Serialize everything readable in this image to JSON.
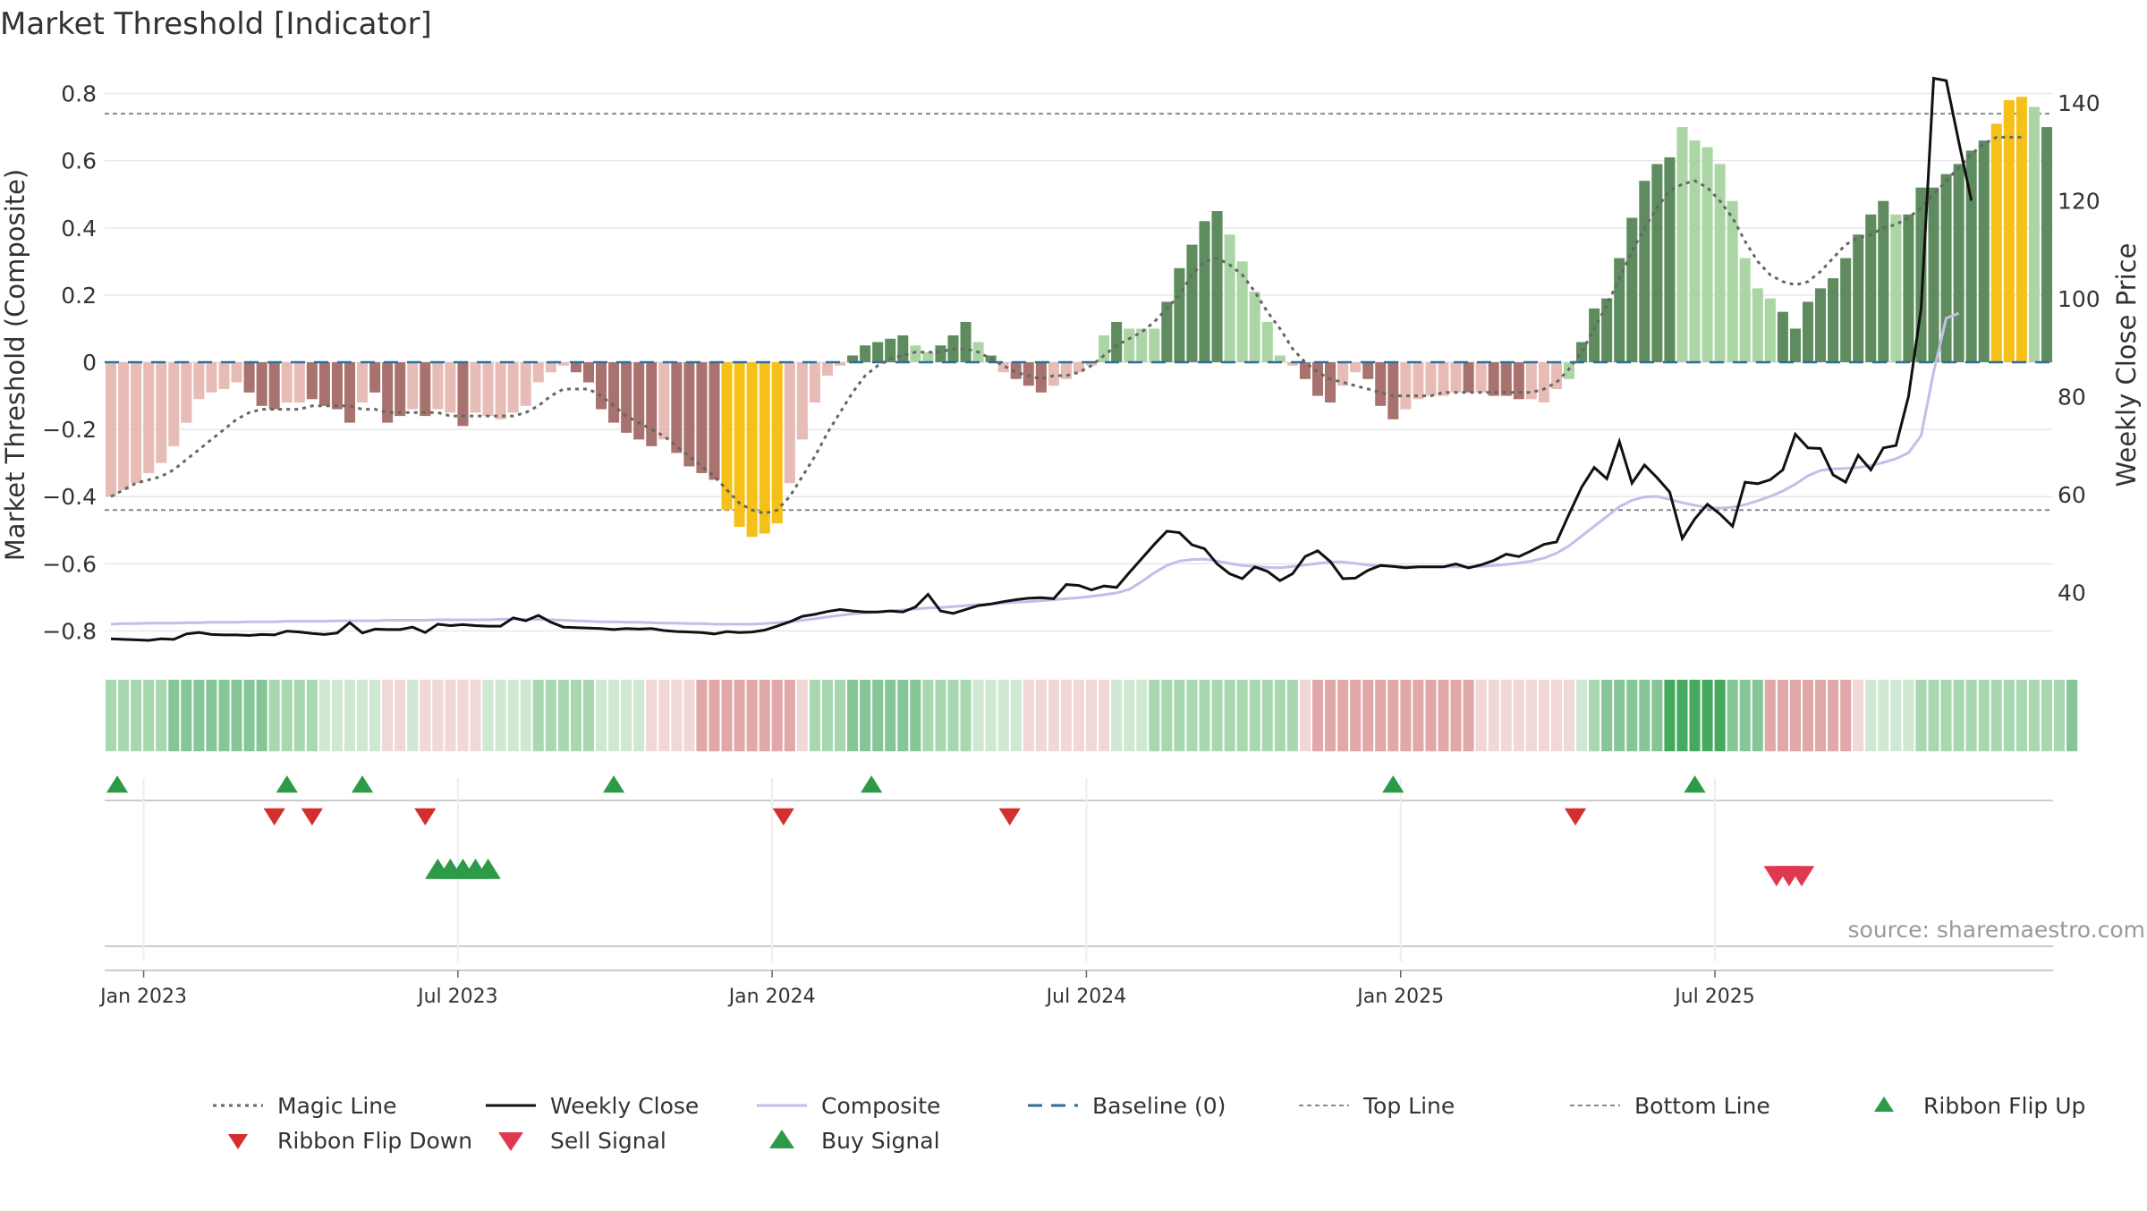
{
  "title": "Market Threshold [Indicator]",
  "source": "source: sharemaestro.com",
  "colors": {
    "bull_dark": "#5e8c5e",
    "bull_light": "#acd5a5",
    "bear_dark": "#a8736e",
    "bear_light": "#e8bcb6",
    "extreme": "#f5c018",
    "magic": "#666666",
    "close": "#111111",
    "composite": "#c4bde9",
    "baseline": "#2f6d99",
    "threshold": "#888888",
    "buy": "#2c9a46",
    "sell": "#d32f2f",
    "sell_signal": "#e0394f"
  },
  "chart_data": {
    "type": "bar",
    "title": "Market Threshold [Indicator]",
    "ylabel": "Market Threshold (Composite)",
    "y2label": "Weekly Close Price",
    "ylim": [
      -0.86,
      0.86
    ],
    "y2lim": [
      28,
      146
    ],
    "yticks": [
      "0.8",
      "0.6",
      "0.4",
      "0.2",
      "0",
      "−0.2",
      "−0.4",
      "−0.6",
      "−0.8"
    ],
    "ytick_values": [
      0.8,
      0.6,
      0.4,
      0.2,
      0,
      -0.2,
      -0.4,
      -0.6,
      -0.8
    ],
    "y2ticks": [
      "140",
      "120",
      "100",
      "80",
      "60",
      "40"
    ],
    "y2tick_values": [
      140,
      120,
      100,
      80,
      60,
      40
    ],
    "x_ticks": [
      "Jan 2023",
      "Jul 2023",
      "Jan 2024",
      "Jul 2024",
      "Jan 2025",
      "Jul 2025"
    ],
    "x_tick_weeks": [
      3.1,
      28.1,
      53.1,
      78.1,
      103.1,
      128.1
    ],
    "top_line": 0.74,
    "bottom_line": -0.44,
    "baseline": 0,
    "bars": [
      -0.4,
      -0.38,
      -0.36,
      -0.33,
      -0.3,
      -0.25,
      -0.18,
      -0.11,
      -0.09,
      -0.08,
      -0.06,
      -0.09,
      -0.13,
      -0.14,
      -0.12,
      -0.12,
      -0.11,
      -0.13,
      -0.14,
      -0.18,
      -0.12,
      -0.09,
      -0.18,
      -0.16,
      -0.14,
      -0.16,
      -0.14,
      -0.15,
      -0.19,
      -0.15,
      -0.16,
      -0.17,
      -0.15,
      -0.13,
      -0.06,
      -0.03,
      -0.01,
      -0.03,
      -0.06,
      -0.14,
      -0.18,
      -0.21,
      -0.23,
      -0.25,
      -0.23,
      -0.27,
      -0.31,
      -0.33,
      -0.35,
      -0.44,
      -0.49,
      -0.52,
      -0.51,
      -0.48,
      -0.36,
      -0.23,
      -0.12,
      -0.04,
      -0.01,
      0.02,
      0.05,
      0.06,
      0.07,
      0.08,
      0.05,
      0.03,
      0.05,
      0.08,
      0.12,
      0.06,
      0.02,
      -0.03,
      -0.05,
      -0.07,
      -0.09,
      -0.07,
      -0.05,
      -0.03,
      -0.01,
      0.08,
      0.12,
      0.1,
      0.1,
      0.1,
      0.18,
      0.28,
      0.35,
      0.42,
      0.45,
      0.38,
      0.3,
      0.21,
      0.12,
      0.02,
      -0.01,
      -0.05,
      -0.1,
      -0.12,
      -0.07,
      -0.03,
      -0.05,
      -0.13,
      -0.17,
      -0.14,
      -0.11,
      -0.1,
      -0.1,
      -0.09,
      -0.09,
      -0.09,
      -0.1,
      -0.1,
      -0.11,
      -0.11,
      -0.12,
      -0.08,
      -0.05,
      0.06,
      0.16,
      0.19,
      0.31,
      0.43,
      0.54,
      0.59,
      0.61,
      0.7,
      0.66,
      0.64,
      0.59,
      0.48,
      0.31,
      0.22,
      0.19,
      0.15,
      0.1,
      0.18,
      0.22,
      0.25,
      0.31,
      0.38,
      0.44,
      0.48,
      0.44,
      0.44,
      0.52,
      0.52,
      0.56,
      0.59,
      0.63,
      0.66,
      0.71,
      0.78,
      0.79,
      0.76,
      0.7
    ],
    "bar_categories": [
      "BR",
      "BR",
      "BR",
      "BR",
      "BR",
      "BR",
      "BR",
      "BR",
      "BR",
      "BR",
      "BR",
      "BD",
      "BD",
      "BD",
      "BR",
      "BR",
      "BD",
      "BD",
      "BD",
      "BD",
      "BR",
      "BD",
      "BD",
      "BD",
      "BR",
      "BD",
      "BR",
      "BR",
      "BD",
      "BR",
      "BR",
      "BR",
      "BR",
      "BR",
      "BR",
      "BR",
      "BR",
      "BD",
      "BD",
      "BD",
      "BD",
      "BD",
      "BD",
      "BD",
      "BR",
      "BD",
      "BD",
      "BD",
      "BD",
      "X",
      "X",
      "X",
      "X",
      "X",
      "BR",
      "BR",
      "BR",
      "BR",
      "BR",
      "BD",
      "BD",
      "BD",
      "BD",
      "BD",
      "BL",
      "BL",
      "BD",
      "BD",
      "BD",
      "BL",
      "BD",
      "BR",
      "BD",
      "BD",
      "BD",
      "BR",
      "BR",
      "BR",
      "BR",
      "BL",
      "BD",
      "BL",
      "BL",
      "BL",
      "BD",
      "BD",
      "BD",
      "BD",
      "BD",
      "BL",
      "BL",
      "BL",
      "BL",
      "BL",
      "BR",
      "BD",
      "BD",
      "BD",
      "BR",
      "BR",
      "BD",
      "BD",
      "BD",
      "BR",
      "BR",
      "BR",
      "BR",
      "BR",
      "BD",
      "BR",
      "BD",
      "BD",
      "BD",
      "BR",
      "BR",
      "BR",
      "BL",
      "BD",
      "BD",
      "BD",
      "BD",
      "BD",
      "BD",
      "BD",
      "BD",
      "BL",
      "BL",
      "BL",
      "BL",
      "BL",
      "BL",
      "BL",
      "BL",
      "BD",
      "BD",
      "BD",
      "BD",
      "BD",
      "BD",
      "BD",
      "BD",
      "BD",
      "BL",
      "BD",
      "BD",
      "BD",
      "BD",
      "BD",
      "BD",
      "BD",
      "X",
      "X",
      "X",
      "BL"
    ],
    "magic_line": [
      -0.4,
      -0.38,
      -0.36,
      -0.35,
      -0.34,
      -0.32,
      -0.29,
      -0.26,
      -0.23,
      -0.2,
      -0.17,
      -0.15,
      -0.14,
      -0.14,
      -0.14,
      -0.14,
      -0.13,
      -0.13,
      -0.13,
      -0.13,
      -0.14,
      -0.14,
      -0.15,
      -0.15,
      -0.15,
      -0.15,
      -0.15,
      -0.16,
      -0.16,
      -0.16,
      -0.16,
      -0.16,
      -0.16,
      -0.15,
      -0.13,
      -0.1,
      -0.08,
      -0.08,
      -0.08,
      -0.1,
      -0.13,
      -0.16,
      -0.18,
      -0.2,
      -0.22,
      -0.25,
      -0.28,
      -0.31,
      -0.34,
      -0.38,
      -0.42,
      -0.44,
      -0.45,
      -0.44,
      -0.4,
      -0.34,
      -0.28,
      -0.21,
      -0.15,
      -0.09,
      -0.04,
      -0.01,
      0.01,
      0.02,
      0.03,
      0.03,
      0.03,
      0.04,
      0.04,
      0.03,
      0.01,
      -0.01,
      -0.03,
      -0.04,
      -0.05,
      -0.04,
      -0.04,
      -0.03,
      -0.01,
      0.02,
      0.05,
      0.07,
      0.09,
      0.12,
      0.16,
      0.2,
      0.26,
      0.3,
      0.31,
      0.29,
      0.26,
      0.21,
      0.15,
      0.1,
      0.04,
      0.0,
      -0.03,
      -0.05,
      -0.06,
      -0.07,
      -0.08,
      -0.09,
      -0.1,
      -0.1,
      -0.1,
      -0.1,
      -0.09,
      -0.09,
      -0.09,
      -0.09,
      -0.09,
      -0.09,
      -0.09,
      -0.09,
      -0.08,
      -0.06,
      -0.02,
      0.03,
      0.1,
      0.17,
      0.25,
      0.33,
      0.4,
      0.46,
      0.51,
      0.53,
      0.54,
      0.52,
      0.48,
      0.43,
      0.36,
      0.3,
      0.26,
      0.24,
      0.23,
      0.24,
      0.27,
      0.31,
      0.35,
      0.37,
      0.38,
      0.4,
      0.41,
      0.43,
      0.46,
      0.5,
      0.54,
      0.58,
      0.62,
      0.65,
      0.67,
      0.67,
      0.67
    ],
    "weekly_close": [
      30.5,
      30.4,
      30.3,
      30.2,
      30.5,
      30.4,
      31.5,
      31.8,
      31.4,
      31.3,
      31.3,
      31.2,
      31.4,
      31.3,
      32.1,
      31.9,
      31.6,
      31.4,
      31.7,
      33.8,
      31.7,
      32.5,
      32.4,
      32.4,
      32.9,
      31.8,
      33.5,
      33.2,
      33.4,
      33.2,
      33.1,
      33.1,
      34.8,
      34.2,
      35.3,
      33.9,
      32.9,
      32.8,
      32.7,
      32.6,
      32.4,
      32.6,
      32.5,
      32.6,
      32.2,
      32.0,
      31.9,
      31.8,
      31.5,
      32.0,
      31.8,
      31.9,
      32.3,
      33.1,
      34.0,
      35.1,
      35.5,
      36.1,
      36.5,
      36.2,
      36.0,
      36.0,
      36.2,
      36.0,
      37.0,
      39.6,
      36.2,
      35.7,
      36.5,
      37.3,
      37.6,
      38.1,
      38.5,
      38.8,
      38.9,
      38.7,
      41.6,
      41.4,
      40.5,
      41.3,
      41.0,
      44.0,
      46.9,
      49.8,
      52.5,
      52.2,
      49.7,
      48.9,
      45.8,
      43.8,
      42.8,
      45.2,
      44.3,
      42.4,
      43.8,
      47.3,
      48.5,
      46.3,
      42.8,
      42.9,
      44.5,
      45.5,
      45.3,
      45.0,
      45.2,
      45.2,
      45.2,
      45.8,
      45.0,
      45.6,
      46.5,
      47.8,
      47.3,
      48.5,
      49.8,
      50.3,
      56.0,
      61.5,
      65.5,
      63.2,
      70.8,
      62.3,
      66.0,
      63.4,
      60.5,
      51.0,
      55.0,
      58.0,
      56.0,
      53.5,
      62.5,
      62.2,
      63.0,
      65.0,
      72.3,
      69.5,
      69.4,
      64.0,
      62.5,
      68.0,
      65.0,
      69.5,
      70.0,
      80.0,
      98.0,
      145.0,
      144.5,
      132.0,
      120.0
    ],
    "composite_price": [
      33.5,
      33.6,
      33.6,
      33.7,
      33.7,
      33.7,
      33.8,
      33.8,
      33.9,
      33.9,
      33.9,
      34.0,
      34.0,
      34.0,
      34.1,
      34.1,
      34.1,
      34.1,
      34.2,
      34.2,
      34.2,
      34.2,
      34.3,
      34.3,
      34.3,
      34.3,
      34.4,
      34.4,
      34.4,
      34.4,
      34.4,
      34.5,
      34.5,
      34.5,
      34.5,
      34.4,
      34.3,
      34.2,
      34.1,
      34.0,
      34.0,
      33.9,
      33.9,
      33.8,
      33.7,
      33.7,
      33.6,
      33.6,
      33.5,
      33.5,
      33.5,
      33.5,
      33.6,
      33.8,
      34.0,
      34.3,
      34.6,
      35.0,
      35.3,
      35.6,
      35.8,
      36.0,
      36.2,
      36.4,
      36.6,
      36.8,
      36.9,
      37.1,
      37.3,
      37.5,
      37.6,
      37.8,
      38.0,
      38.1,
      38.3,
      38.5,
      38.7,
      38.9,
      39.2,
      39.5,
      39.9,
      40.6,
      42.2,
      44.0,
      45.5,
      46.4,
      46.7,
      46.8,
      46.4,
      45.9,
      45.5,
      45.3,
      45.1,
      45.0,
      45.3,
      45.6,
      45.9,
      46.2,
      46.2,
      45.9,
      45.6,
      45.4,
      45.3,
      45.3,
      45.2,
      45.2,
      45.2,
      45.2,
      45.2,
      45.3,
      45.5,
      45.7,
      46.0,
      46.4,
      47.0,
      48.0,
      49.5,
      51.5,
      53.5,
      55.5,
      57.5,
      58.8,
      59.5,
      59.6,
      59.0,
      58.3,
      57.8,
      57.3,
      57.2,
      57.4,
      57.9,
      58.7,
      59.6,
      60.7,
      62.1,
      63.8,
      64.9,
      65.2,
      65.3,
      65.5,
      65.9,
      66.5,
      67.3,
      68.5,
      72.0,
      85.0,
      96.0,
      97.0
    ],
    "ribbon": [
      2,
      2,
      2,
      2,
      2,
      3,
      3,
      3,
      3,
      3,
      3,
      3,
      3,
      2,
      2,
      2,
      2,
      1,
      1,
      1,
      1,
      1,
      -1,
      -1,
      1,
      -1,
      -1,
      -1,
      -1,
      -1,
      1,
      1,
      1,
      1,
      2,
      2,
      2,
      2,
      2,
      1,
      1,
      1,
      1,
      -1,
      -1,
      -1,
      -1,
      -2,
      -2,
      -2,
      -2,
      -2,
      -2,
      -2,
      -2,
      -1,
      2,
      2,
      2,
      3,
      3,
      3,
      3,
      3,
      3,
      2,
      2,
      2,
      2,
      1,
      1,
      1,
      1,
      -1,
      -1,
      -1,
      -1,
      -1,
      -1,
      -1,
      1,
      1,
      1,
      2,
      2,
      2,
      2,
      2,
      2,
      2,
      2,
      2,
      2,
      2,
      2,
      -1,
      -2,
      -2,
      -2,
      -2,
      -2,
      -2,
      -2,
      -2,
      -2,
      -2,
      -2,
      -2,
      -2,
      -1,
      -1,
      -1,
      -1,
      -1,
      -1,
      -1,
      -1,
      1,
      2,
      3,
      3,
      3,
      3,
      3,
      4,
      4,
      4,
      4,
      4,
      3,
      3,
      3,
      -2,
      -2,
      -2,
      -2,
      -2,
      -2,
      -2,
      -1,
      1,
      1,
      1,
      1,
      2,
      2,
      2,
      2,
      2,
      2,
      2,
      2,
      2,
      2,
      2,
      2,
      3
    ],
    "ribbon_flip_up": [
      1.0,
      14.5,
      20.5,
      40.5,
      61.0,
      102.5,
      126.5
    ],
    "ribbon_flip_down": [
      13.5,
      16.5,
      25.5,
      54.0,
      72.0,
      117.0
    ],
    "buy_signal": [
      26.5,
      27.5,
      28.5,
      29.5,
      30.5
    ],
    "sell_signal": [
      133.0,
      134.0,
      135.0
    ],
    "legend": [
      "Magic Line",
      "Weekly Close",
      "Composite",
      "Baseline (0)",
      "Top Line",
      "Bottom Line",
      "Ribbon Flip Up",
      "Ribbon Flip Down",
      "Sell Signal",
      "Buy Signal"
    ]
  }
}
